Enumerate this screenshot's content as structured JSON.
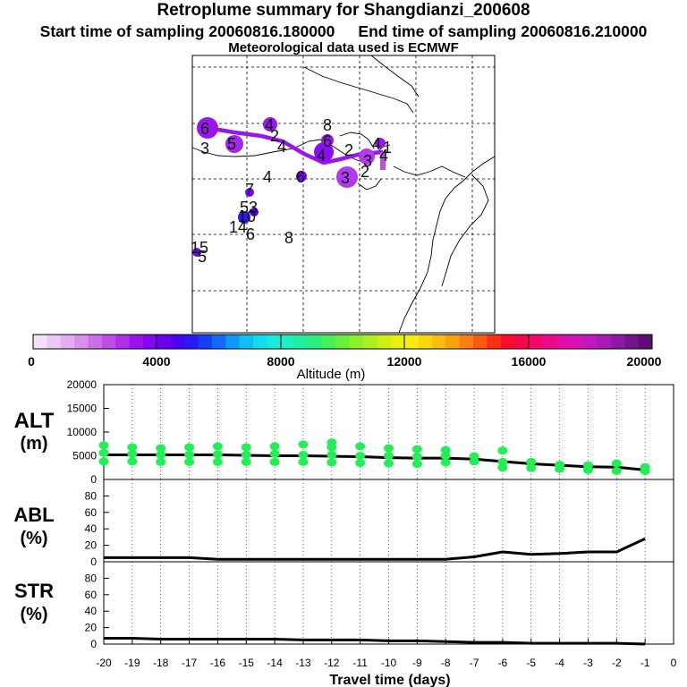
{
  "header": {
    "title": "Retroplume summary for Shangdianzi_200608",
    "start_label": "Start time of sampling 20060816.180000",
    "end_label": "End time of sampling 20060816.210000",
    "met_label": "Meteorological data used is ECMWF"
  },
  "colorbar": {
    "label": "Altitude (m)",
    "ticks": [
      "0",
      "4000",
      "8000",
      "12000",
      "16000",
      "20000"
    ],
    "colors": [
      "#f4e0f8",
      "#ecc8f4",
      "#e2aef0",
      "#d890ec",
      "#cc6ee8",
      "#c04ce6",
      "#b02ee8",
      "#9a12ec",
      "#8406ee",
      "#6a00f0",
      "#4a04f4",
      "#2a1af6",
      "#1640f8",
      "#106cf8",
      "#0c98f6",
      "#0cc0f4",
      "#10dcee",
      "#18ecdc",
      "#1cf0be",
      "#20f09c",
      "#2cf07a",
      "#48f058",
      "#6af03c",
      "#8cf02a",
      "#aef01e",
      "#ccf014",
      "#e8f00e",
      "#f8ec0a",
      "#fcd80a",
      "#fcbc0a",
      "#fca00c",
      "#fc8010",
      "#fc5a14",
      "#fa301a",
      "#f80e2c",
      "#f8064a",
      "#f6066c",
      "#f0088c",
      "#e40ca6",
      "#d412b8",
      "#c018be",
      "#a81ab6",
      "#8e18a6",
      "#76148e",
      "#5e0e72"
    ]
  },
  "map": {
    "plume_color": "#9a16ee",
    "point_labels": [
      {
        "id": "m1",
        "text": "6"
      },
      {
        "id": "m2",
        "text": "5"
      },
      {
        "id": "m3",
        "text": "3"
      },
      {
        "id": "m4",
        "text": "4"
      },
      {
        "id": "m5",
        "text": "2"
      },
      {
        "id": "m6",
        "text": "4"
      },
      {
        "id": "m7",
        "text": "8"
      },
      {
        "id": "m8",
        "text": "6"
      },
      {
        "id": "m9",
        "text": "4"
      },
      {
        "id": "m10",
        "text": "2"
      },
      {
        "id": "m11",
        "text": "3"
      },
      {
        "id": "m12",
        "text": "2"
      },
      {
        "id": "m13",
        "text": "4"
      },
      {
        "id": "m14",
        "text": "4"
      },
      {
        "id": "m15",
        "text": "1"
      },
      {
        "id": "m16",
        "text": "3"
      },
      {
        "id": "m17",
        "text": "4"
      },
      {
        "id": "m18",
        "text": "6"
      },
      {
        "id": "m19",
        "text": "7"
      },
      {
        "id": "m20",
        "text": "5"
      },
      {
        "id": "m21",
        "text": "3"
      },
      {
        "id": "m22",
        "text": "10"
      },
      {
        "id": "m23",
        "text": "14"
      },
      {
        "id": "m24",
        "text": "6"
      },
      {
        "id": "m25",
        "text": "8"
      },
      {
        "id": "m26",
        "text": "15"
      },
      {
        "id": "m27",
        "text": "5"
      }
    ]
  },
  "chart_data": [
    {
      "type": "line",
      "panel": "ALT",
      "ylabel_line1": "ALT",
      "ylabel_line2": "(m)",
      "ylim": [
        0,
        20000
      ],
      "yticks": [
        0,
        5000,
        10000,
        15000,
        20000
      ],
      "x": [
        -20,
        -19,
        -18,
        -17,
        -16,
        -15,
        -14,
        -13,
        -12,
        -11,
        -10,
        -9,
        -8,
        -7,
        -6,
        -5,
        -4,
        -3,
        -2,
        -1
      ],
      "series": [
        {
          "name": "median altitude",
          "color": "#000000",
          "values": [
            5200,
            5200,
            5200,
            5200,
            5200,
            5100,
            5000,
            5000,
            4900,
            4800,
            4600,
            4500,
            4500,
            4300,
            3800,
            3300,
            3000,
            2700,
            2600,
            2000
          ]
        },
        {
          "name": "plume altitude spread",
          "color": "#22ee55",
          "style": "dots",
          "points": [
            [
              -20,
              3800
            ],
            [
              -20,
              5600
            ],
            [
              -20,
              7200
            ],
            [
              -19,
              3800
            ],
            [
              -19,
              5400
            ],
            [
              -19,
              6800
            ],
            [
              -18,
              3700
            ],
            [
              -18,
              5200
            ],
            [
              -18,
              6600
            ],
            [
              -17,
              3700
            ],
            [
              -17,
              5200
            ],
            [
              -17,
              6800
            ],
            [
              -16,
              3700
            ],
            [
              -16,
              5300
            ],
            [
              -16,
              7000
            ],
            [
              -15,
              3700
            ],
            [
              -15,
              5200
            ],
            [
              -15,
              6800
            ],
            [
              -14,
              3700
            ],
            [
              -14,
              5400
            ],
            [
              -14,
              7000
            ],
            [
              -13,
              3700
            ],
            [
              -13,
              5200
            ],
            [
              -13,
              7400
            ],
            [
              -12,
              3600
            ],
            [
              -12,
              5200
            ],
            [
              -12,
              6800
            ],
            [
              -12,
              7800
            ],
            [
              -11,
              3500
            ],
            [
              -11,
              5000
            ],
            [
              -11,
              7000
            ],
            [
              -10,
              3400
            ],
            [
              -10,
              5000
            ],
            [
              -10,
              6600
            ],
            [
              -9,
              3300
            ],
            [
              -9,
              4800
            ],
            [
              -9,
              6400
            ],
            [
              -8,
              3600
            ],
            [
              -8,
              5000
            ],
            [
              -8,
              6200
            ],
            [
              -7,
              3800
            ],
            [
              -7,
              4900
            ],
            [
              -6,
              2500
            ],
            [
              -6,
              3700
            ],
            [
              -6,
              6100
            ],
            [
              -5,
              2400
            ],
            [
              -5,
              3700
            ],
            [
              -4,
              2200
            ],
            [
              -4,
              3100
            ],
            [
              -3,
              2000
            ],
            [
              -3,
              3000
            ],
            [
              -2,
              1800
            ],
            [
              -2,
              3400
            ],
            [
              -1,
              1800
            ],
            [
              -1,
              2600
            ]
          ]
        }
      ]
    },
    {
      "type": "line",
      "panel": "ABL",
      "ylabel_line1": "ABL",
      "ylabel_line2": "(%)",
      "ylim": [
        0,
        100
      ],
      "yticks": [
        0,
        20,
        40,
        60,
        80
      ],
      "x": [
        -20,
        -19,
        -18,
        -17,
        -16,
        -15,
        -14,
        -13,
        -12,
        -11,
        -10,
        -9,
        -8,
        -7,
        -6,
        -5,
        -4,
        -3,
        -2,
        -1
      ],
      "series": [
        {
          "name": "ABL fraction",
          "color": "#000000",
          "values": [
            5,
            5,
            5,
            5,
            3,
            3,
            3,
            3,
            3,
            3,
            3,
            3,
            3,
            6,
            12,
            9,
            10,
            12,
            12,
            28
          ]
        }
      ]
    },
    {
      "type": "line",
      "panel": "STR",
      "ylabel_line1": "STR",
      "ylabel_line2": "(%)",
      "ylim": [
        0,
        100
      ],
      "yticks": [
        0,
        20,
        40,
        60,
        80
      ],
      "xlabel": "Travel time (days)",
      "xticks": [
        -20,
        -19,
        -18,
        -17,
        -16,
        -15,
        -14,
        -13,
        -12,
        -11,
        -10,
        -9,
        -8,
        -7,
        -6,
        -5,
        -4,
        -3,
        -2,
        -1,
        0
      ],
      "x": [
        -20,
        -19,
        -18,
        -17,
        -16,
        -15,
        -14,
        -13,
        -12,
        -11,
        -10,
        -9,
        -8,
        -7,
        -6,
        -5,
        -4,
        -3,
        -2,
        -1
      ],
      "series": [
        {
          "name": "stratospheric fraction",
          "color": "#000000",
          "values": [
            7,
            7,
            6,
            6,
            6,
            6,
            6,
            5,
            5,
            5,
            4,
            4,
            3,
            2,
            2,
            1,
            1,
            1,
            1,
            0
          ]
        }
      ]
    }
  ]
}
